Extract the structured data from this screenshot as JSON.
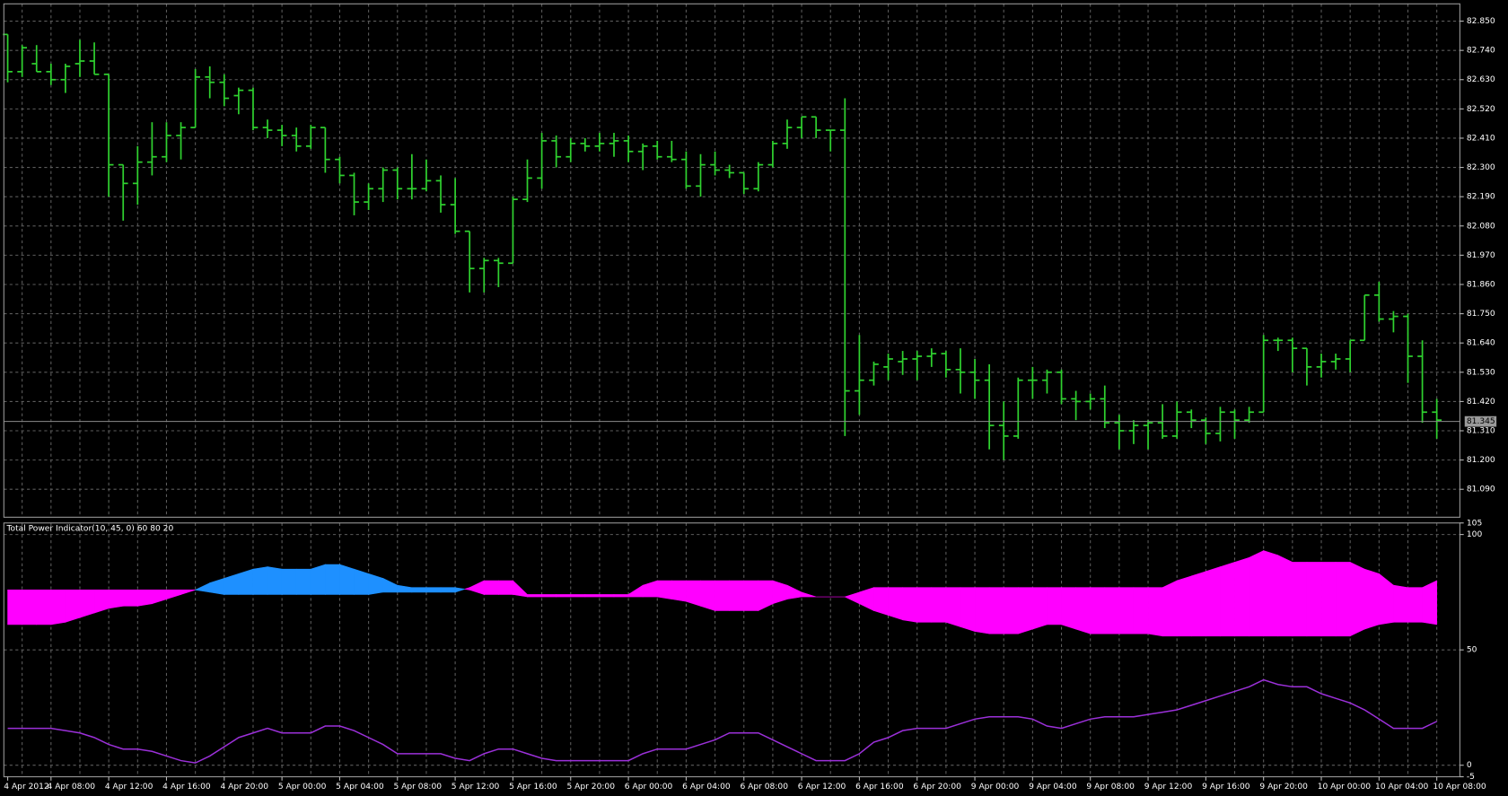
{
  "chart_data": [
    {
      "type": "ohlc",
      "color": "#2fd12f",
      "grid": true,
      "ylim": [
        80.985,
        82.915
      ],
      "yticks": [
        {
          "value": 82.85,
          "label": "82.850"
        },
        {
          "value": 82.74,
          "label": "82.740"
        },
        {
          "value": 82.63,
          "label": "82.630"
        },
        {
          "value": 82.52,
          "label": "82.520"
        },
        {
          "value": 82.41,
          "label": "82.410"
        },
        {
          "value": 82.3,
          "label": "82.300"
        },
        {
          "value": 82.19,
          "label": "82.190"
        },
        {
          "value": 82.08,
          "label": "82.080"
        },
        {
          "value": 81.97,
          "label": "81.970"
        },
        {
          "value": 81.86,
          "label": "81.860"
        },
        {
          "value": 81.75,
          "label": "81.750"
        },
        {
          "value": 81.64,
          "label": "81.640"
        },
        {
          "value": 81.53,
          "label": "81.530"
        },
        {
          "value": 81.42,
          "label": "81.420"
        },
        {
          "value": 81.31,
          "label": "81.310"
        },
        {
          "value": 81.2,
          "label": "81.200"
        },
        {
          "value": 81.09,
          "label": "81.090"
        }
      ],
      "last_price": 81.345,
      "categories": [
        "4 Apr 2012",
        null,
        null,
        "4 Apr 08:00",
        null,
        null,
        null,
        "4 Apr 12:00",
        null,
        null,
        null,
        "4 Apr 16:00",
        null,
        null,
        null,
        "4 Apr 20:00",
        null,
        null,
        null,
        "5 Apr 00:00",
        null,
        null,
        null,
        "5 Apr 04:00",
        null,
        null,
        null,
        "5 Apr 08:00",
        null,
        null,
        null,
        "5 Apr 12:00",
        null,
        null,
        null,
        "5 Apr 16:00",
        null,
        null,
        null,
        "5 Apr 20:00",
        null,
        null,
        null,
        "6 Apr 00:00",
        null,
        null,
        null,
        "6 Apr 04:00",
        null,
        null,
        null,
        "6 Apr 08:00",
        null,
        null,
        null,
        "6 Apr 12:00",
        null,
        null,
        null,
        "6 Apr 16:00",
        null,
        null,
        null,
        "6 Apr 20:00",
        null,
        null,
        null,
        "9 Apr 00:00",
        null,
        null,
        null,
        "9 Apr 04:00",
        null,
        null,
        null,
        "9 Apr 08:00",
        null,
        null,
        null,
        "9 Apr 12:00",
        null,
        null,
        null,
        "9 Apr 16:00",
        null,
        null,
        null,
        "9 Apr 20:00",
        null,
        null,
        null,
        "10 Apr 00:00",
        null,
        null,
        null,
        "10 Apr 04:00",
        null,
        null,
        null,
        "10 Apr 08:00"
      ],
      "open": [
        82.8,
        82.66,
        82.69,
        82.66,
        82.63,
        82.69,
        82.7,
        82.65,
        82.31,
        82.24,
        82.32,
        82.34,
        82.42,
        82.45,
        82.64,
        82.62,
        82.57,
        82.59,
        82.45,
        82.44,
        82.42,
        82.38,
        82.45,
        82.33,
        82.27,
        82.17,
        82.22,
        82.29,
        82.22,
        82.22,
        82.25,
        82.16,
        82.06,
        81.92,
        81.95,
        81.94,
        82.18,
        82.26,
        82.4,
        82.34,
        82.39,
        82.38,
        82.39,
        82.4,
        82.36,
        82.38,
        82.34,
        82.33,
        82.23,
        82.31,
        82.29,
        82.28,
        82.22,
        82.31,
        82.39,
        82.45,
        82.49,
        82.44,
        82.44,
        81.46,
        81.5,
        81.55,
        81.57,
        81.58,
        81.59,
        81.6,
        81.54,
        81.53,
        81.5,
        81.33,
        81.29,
        81.5,
        81.5,
        81.53,
        81.43,
        81.42,
        81.43,
        81.34,
        81.31,
        81.33,
        81.34,
        81.29,
        81.38,
        81.35,
        81.3,
        81.38,
        81.35,
        81.38,
        81.65,
        81.65,
        81.62,
        81.55,
        81.57,
        81.58,
        81.65,
        81.82,
        81.73,
        81.74,
        81.59,
        81.38
      ],
      "high": [
        82.8,
        82.76,
        82.76,
        82.69,
        82.69,
        82.78,
        82.77,
        82.65,
        82.31,
        82.38,
        82.47,
        82.47,
        82.47,
        82.67,
        82.68,
        82.65,
        82.6,
        82.6,
        82.48,
        82.46,
        82.45,
        82.46,
        82.45,
        82.34,
        82.28,
        82.24,
        82.3,
        82.3,
        82.35,
        82.33,
        82.27,
        82.26,
        82.06,
        81.96,
        81.96,
        82.19,
        82.33,
        82.43,
        82.42,
        82.41,
        82.41,
        82.43,
        82.43,
        82.42,
        82.39,
        82.4,
        82.4,
        82.36,
        82.35,
        82.36,
        82.31,
        82.28,
        82.32,
        82.4,
        82.48,
        82.49,
        82.49,
        82.44,
        82.56,
        81.67,
        81.57,
        81.6,
        81.61,
        81.61,
        81.62,
        81.61,
        81.62,
        81.58,
        81.56,
        81.42,
        81.51,
        81.55,
        81.54,
        81.54,
        81.46,
        81.45,
        81.48,
        81.37,
        81.35,
        81.35,
        81.41,
        81.42,
        81.39,
        81.36,
        81.4,
        81.39,
        81.4,
        81.67,
        81.66,
        81.66,
        81.62,
        81.6,
        81.6,
        81.65,
        81.82,
        81.87,
        81.76,
        81.75,
        81.65,
        81.43
      ],
      "low": [
        82.62,
        82.64,
        82.66,
        82.61,
        82.58,
        82.64,
        82.65,
        82.19,
        82.1,
        82.16,
        82.27,
        82.32,
        82.33,
        82.45,
        82.56,
        82.53,
        82.5,
        82.44,
        82.41,
        82.38,
        82.36,
        82.37,
        82.28,
        82.24,
        82.12,
        82.14,
        82.17,
        82.18,
        82.18,
        82.21,
        82.13,
        82.05,
        81.83,
        81.83,
        81.85,
        81.94,
        82.17,
        82.22,
        82.3,
        82.32,
        82.36,
        82.36,
        82.34,
        82.32,
        82.29,
        82.33,
        82.32,
        82.22,
        82.19,
        82.27,
        82.26,
        82.2,
        82.21,
        82.3,
        82.37,
        82.41,
        82.41,
        82.36,
        81.29,
        81.37,
        81.48,
        81.5,
        81.52,
        81.5,
        81.55,
        81.51,
        81.45,
        81.43,
        81.24,
        81.2,
        81.28,
        81.43,
        81.45,
        81.41,
        81.35,
        81.39,
        81.32,
        81.24,
        81.26,
        81.24,
        81.28,
        81.28,
        81.32,
        81.26,
        81.27,
        81.28,
        81.34,
        81.38,
        81.61,
        81.53,
        81.48,
        81.51,
        81.54,
        81.53,
        81.65,
        81.72,
        81.68,
        81.49,
        81.34,
        81.28
      ],
      "close": [
        82.66,
        82.75,
        82.66,
        82.63,
        82.68,
        82.7,
        82.65,
        82.31,
        82.24,
        82.32,
        82.34,
        82.42,
        82.45,
        82.64,
        82.62,
        82.56,
        82.59,
        82.45,
        82.44,
        82.42,
        82.38,
        82.45,
        82.33,
        82.27,
        82.17,
        82.22,
        82.29,
        82.22,
        82.22,
        82.25,
        82.16,
        82.06,
        81.92,
        81.95,
        81.94,
        82.18,
        82.26,
        82.4,
        82.34,
        82.39,
        82.38,
        82.39,
        82.4,
        82.36,
        82.38,
        82.34,
        82.33,
        82.23,
        82.31,
        82.29,
        82.28,
        82.22,
        82.31,
        82.39,
        82.45,
        82.49,
        82.44,
        82.44,
        81.46,
        81.5,
        81.56,
        81.58,
        81.58,
        81.59,
        81.6,
        81.54,
        81.53,
        81.5,
        81.33,
        81.29,
        81.5,
        81.5,
        81.53,
        81.43,
        81.42,
        81.43,
        81.34,
        81.31,
        81.33,
        81.34,
        81.29,
        81.38,
        81.35,
        81.3,
        81.38,
        81.35,
        81.38,
        81.65,
        81.65,
        81.62,
        81.55,
        81.57,
        81.58,
        81.65,
        81.82,
        81.73,
        81.74,
        81.59,
        81.38,
        81.35
      ]
    },
    {
      "type": "band",
      "title": "Total Power Indicator(10, 45, 0) 60 80 20",
      "grid": true,
      "ylim": [
        -5,
        105
      ],
      "yticks": [
        105,
        100,
        50,
        0,
        -5
      ],
      "series": [
        {
          "type": "band",
          "color": "#1e90ff",
          "values": [
            61,
            61,
            61,
            61,
            62,
            64,
            66,
            68,
            69,
            69,
            70,
            72,
            74,
            76,
            79,
            81,
            83,
            85,
            86,
            85,
            85,
            85,
            87,
            87,
            85,
            83,
            81,
            78,
            77,
            77,
            77,
            77,
            76,
            74,
            74,
            74,
            73,
            73,
            73,
            73,
            73,
            73,
            73,
            73,
            73,
            73,
            72,
            71,
            69,
            67,
            67,
            67,
            67,
            70,
            72,
            73,
            73,
            73,
            73,
            70,
            67,
            65,
            63,
            62,
            62,
            62,
            60,
            58,
            57,
            57,
            57,
            59,
            61,
            61,
            59,
            57,
            57,
            57,
            57,
            57,
            56,
            56,
            56,
            56,
            56,
            56,
            56,
            56,
            56,
            56,
            56,
            56,
            56,
            56,
            59,
            61,
            62,
            62,
            62,
            61
          ]
        },
        {
          "type": "band",
          "color": "#ff00ff",
          "values": [
            76,
            76,
            76,
            76,
            76,
            76,
            76,
            76,
            76,
            76,
            76,
            76,
            76,
            76,
            75,
            74,
            74,
            74,
            74,
            74,
            74,
            74,
            74,
            74,
            74,
            74,
            75,
            75,
            75,
            75,
            75,
            75,
            77,
            80,
            80,
            80,
            74,
            74,
            74,
            74,
            74,
            74,
            74,
            74,
            78,
            80,
            80,
            80,
            80,
            80,
            80,
            80,
            80,
            80,
            78,
            75,
            73,
            73,
            73,
            75,
            77,
            77,
            77,
            77,
            77,
            77,
            77,
            77,
            77,
            77,
            77,
            77,
            77,
            77,
            77,
            77,
            77,
            77,
            77,
            77,
            77,
            80,
            82,
            84,
            86,
            88,
            90,
            93,
            91,
            88,
            88,
            88,
            88,
            88,
            85,
            83,
            78,
            77,
            77,
            80
          ]
        },
        {
          "type": "line",
          "color": "#9b30d9",
          "values": [
            16,
            16,
            16,
            16,
            15,
            14,
            12,
            9,
            7,
            7,
            6,
            4,
            2,
            1,
            4,
            8,
            12,
            14,
            16,
            14,
            14,
            14,
            17,
            17,
            15,
            12,
            9,
            5,
            5,
            5,
            5,
            3,
            2,
            5,
            7,
            7,
            5,
            3,
            2,
            2,
            2,
            2,
            2,
            2,
            5,
            7,
            7,
            7,
            9,
            11,
            14,
            14,
            14,
            11,
            8,
            5,
            2,
            2,
            2,
            5,
            10,
            12,
            15,
            16,
            16,
            16,
            18,
            20,
            21,
            21,
            21,
            20,
            17,
            16,
            18,
            20,
            21,
            21,
            21,
            22,
            23,
            24,
            26,
            28,
            30,
            32,
            34,
            37,
            35,
            34,
            34,
            31,
            29,
            27,
            24,
            20,
            16,
            16,
            16,
            19
          ]
        }
      ]
    }
  ]
}
